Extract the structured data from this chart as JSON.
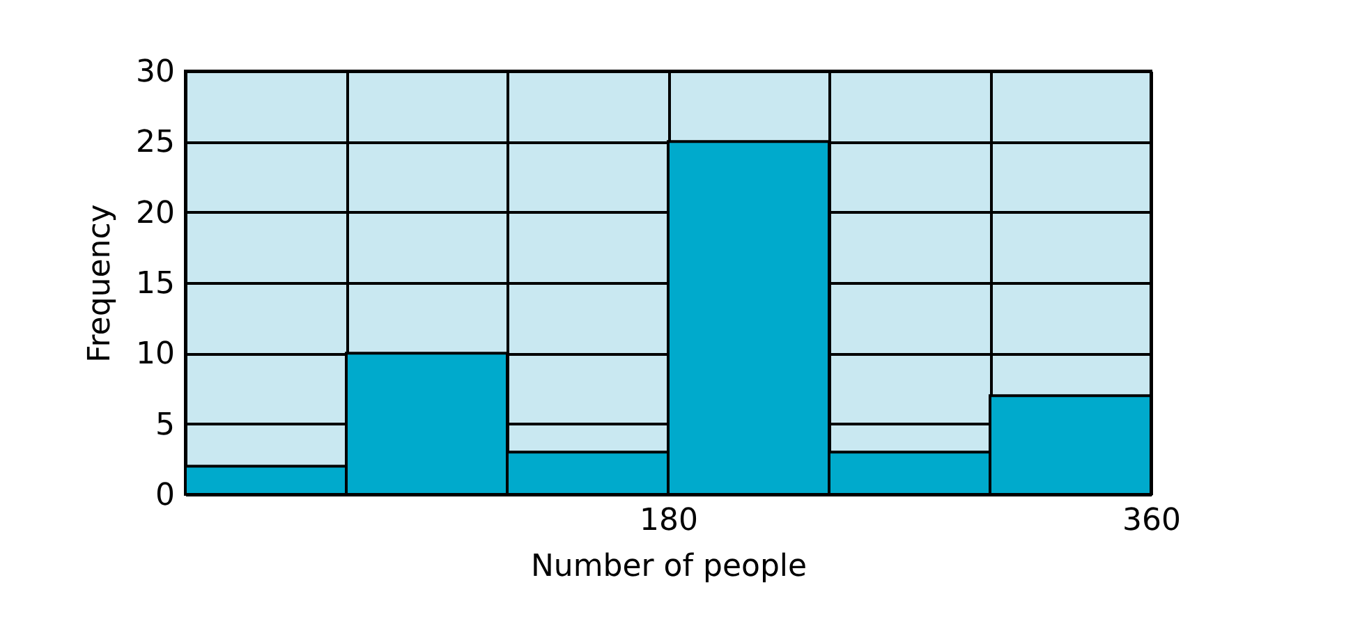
{
  "chart_data": {
    "type": "histogram",
    "xlabel": "Number of people",
    "ylabel": "Frequency",
    "bins": [
      0,
      60,
      120,
      180,
      240,
      300,
      360
    ],
    "values": [
      2,
      10,
      3,
      25,
      3,
      7
    ],
    "color": "#00aacc",
    "xlim": [
      0,
      360
    ],
    "ylim": [
      0,
      30
    ],
    "xticks": [
      {
        "value": 0,
        "label": null
      },
      {
        "value": 60,
        "label": null
      },
      {
        "value": 120,
        "label": null
      },
      180,
      {
        "value": 240,
        "label": null
      },
      {
        "value": 300,
        "label": null
      },
      360
    ],
    "yticks": [
      0,
      5,
      10,
      15,
      20,
      25,
      30
    ],
    "grid": true
  }
}
